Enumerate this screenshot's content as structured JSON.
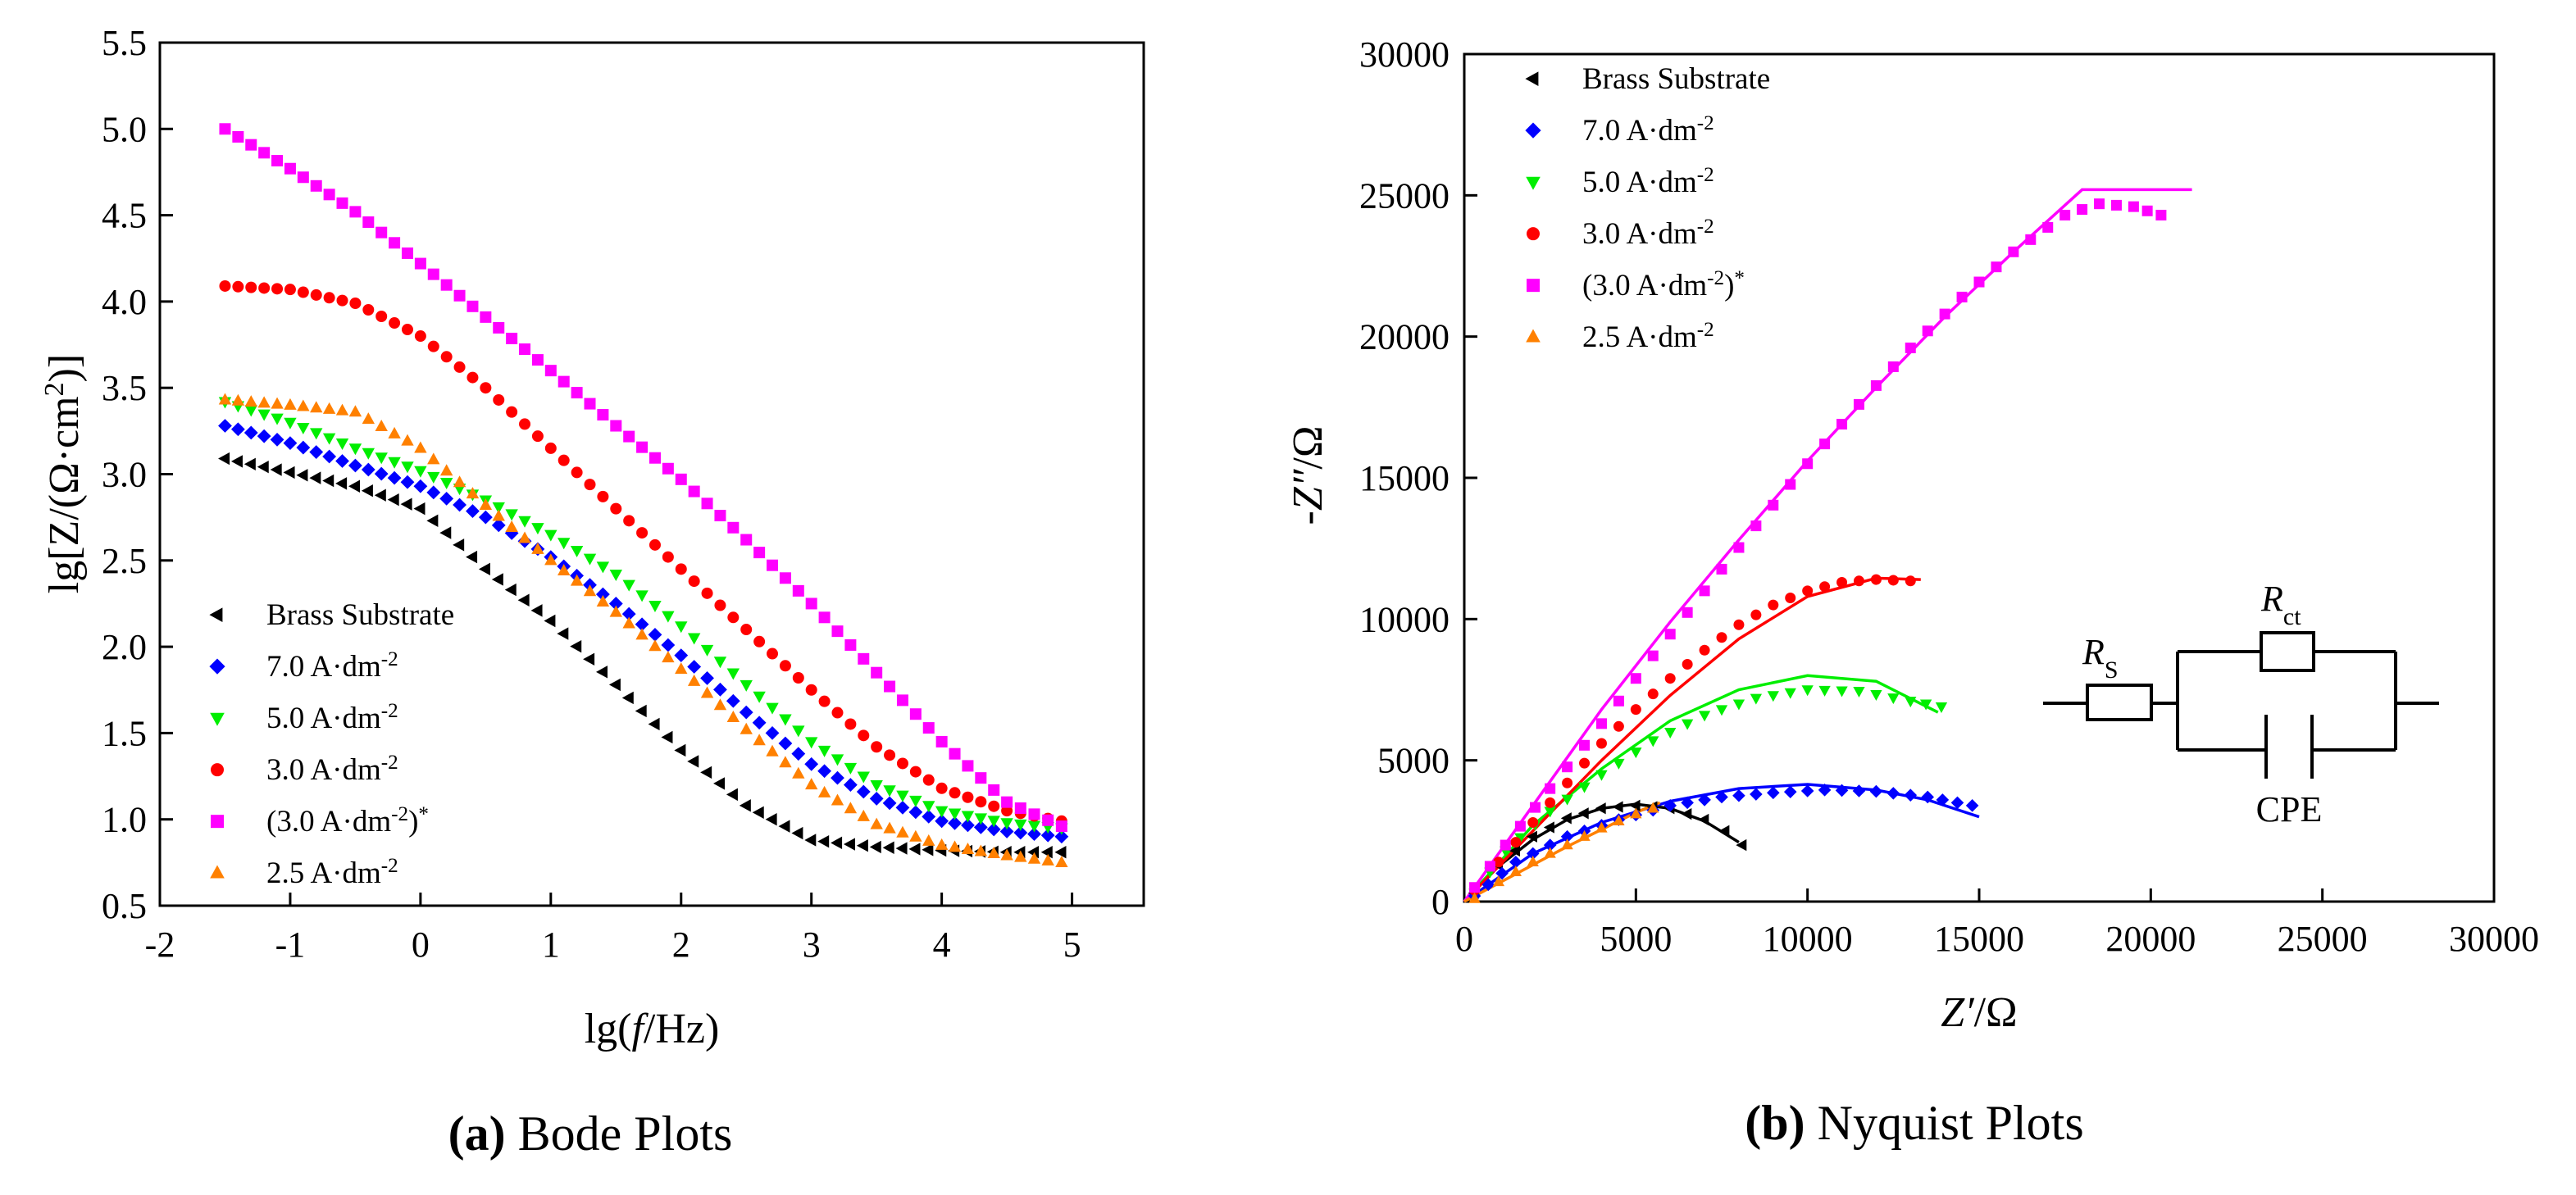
{
  "chart_data": [
    {
      "type": "scatter",
      "title": "Bode Plots",
      "caption_letter": "(a)",
      "caption_text": "Bode Plots",
      "xlabel": {
        "pre": "lg(",
        "italic": "f",
        "post": "/Hz)"
      },
      "ylabel": {
        "pre": "lg[Z/(Ω·cm",
        "sup": "2",
        "post": ")]"
      },
      "xlim": [
        -2,
        5.55
      ],
      "ylim": [
        0.5,
        5.5
      ],
      "xticks": [
        -2,
        -1,
        0,
        1,
        2,
        3,
        4,
        5
      ],
      "yticks": [
        0.5,
        1.0,
        1.5,
        2.0,
        2.5,
        3.0,
        3.5,
        4.0,
        4.5,
        5.0,
        5.5
      ],
      "ytick_labels": [
        "0.5",
        "1.0",
        "1.5",
        "2.0",
        "2.5",
        "3.0",
        "3.5",
        "4.0",
        "4.5",
        "5.0",
        "5.5"
      ],
      "legend_position": "lower-left",
      "series": [
        {
          "name": "Brass Substrate",
          "name_sup": "",
          "color": "#000000",
          "marker": "triangle-left",
          "x": [
            -1.5,
            -0.5,
            0.0,
            0.5,
            1.0,
            1.5,
            2.0,
            2.5,
            3.0,
            3.5,
            4.0,
            4.5,
            4.92
          ],
          "y": [
            3.09,
            2.93,
            2.8,
            2.45,
            2.15,
            1.78,
            1.4,
            1.08,
            0.88,
            0.84,
            0.82,
            0.81,
            0.81
          ]
        },
        {
          "name": "7.0 A·dm",
          "name_sup": "-2",
          "color": "#0000ff",
          "marker": "diamond",
          "x": [
            -1.5,
            -1.0,
            -0.5,
            0.0,
            0.5,
            1.0,
            1.5,
            2.0,
            2.5,
            3.0,
            3.5,
            4.0,
            4.5,
            4.92
          ],
          "y": [
            3.28,
            3.18,
            3.05,
            2.93,
            2.75,
            2.52,
            2.25,
            1.95,
            1.62,
            1.32,
            1.12,
            0.99,
            0.93,
            0.9
          ]
        },
        {
          "name": "5.0 A·dm",
          "name_sup": "-2",
          "color": "#00ee00",
          "marker": "triangle-down",
          "x": [
            -1.5,
            -1.0,
            -0.5,
            0.0,
            0.5,
            1.0,
            1.5,
            2.0,
            2.5,
            3.0,
            3.5,
            4.0,
            4.5,
            4.92
          ],
          "y": [
            3.42,
            3.3,
            3.15,
            3.02,
            2.85,
            2.65,
            2.42,
            2.12,
            1.78,
            1.45,
            1.2,
            1.05,
            0.98,
            0.95
          ]
        },
        {
          "name": "3.0 A·dm",
          "name_sup": "-2",
          "color": "#ff0000",
          "marker": "circle",
          "x": [
            -1.5,
            -1.0,
            -0.5,
            0.0,
            0.5,
            1.0,
            1.5,
            2.0,
            2.5,
            3.0,
            3.5,
            4.0,
            4.5,
            4.92
          ],
          "y": [
            4.09,
            4.07,
            3.99,
            3.8,
            3.5,
            3.15,
            2.8,
            2.45,
            2.1,
            1.75,
            1.42,
            1.18,
            1.05,
            0.99
          ]
        },
        {
          "name": "(3.0 A·dm",
          "name_sup": "-2",
          "name_post": ")",
          "name_post_sup": "*",
          "color": "#ff00ff",
          "marker": "square",
          "x": [
            -1.5,
            -1.0,
            -0.5,
            0.0,
            0.5,
            1.0,
            1.5,
            2.0,
            2.5,
            3.0,
            3.5,
            4.0,
            4.5,
            4.92
          ],
          "y": [
            5.0,
            4.77,
            4.52,
            4.22,
            3.91,
            3.6,
            3.28,
            2.97,
            2.62,
            2.25,
            1.85,
            1.45,
            1.1,
            0.96
          ]
        },
        {
          "name": "2.5 A·dm",
          "name_sup": "-2",
          "color": "#ff8000",
          "marker": "triangle-up",
          "x": [
            -1.5,
            -1.0,
            -0.5,
            0.0,
            0.5,
            1.0,
            1.5,
            2.0,
            2.5,
            3.0,
            3.5,
            4.0,
            4.5,
            4.92
          ],
          "y": [
            3.43,
            3.4,
            3.36,
            3.15,
            2.82,
            2.5,
            2.2,
            1.87,
            1.52,
            1.2,
            0.97,
            0.85,
            0.79,
            0.75
          ]
        }
      ]
    },
    {
      "type": "scatter",
      "title": "Nyquist Plots",
      "caption_letter": "(b)",
      "caption_text": "Nyquist Plots",
      "xlabel": {
        "pre": "",
        "italic": "Z′",
        "post": "/Ω"
      },
      "ylabel": {
        "pre": "-",
        "italic": "Z″",
        "post": "/Ω"
      },
      "xlim": [
        0,
        30000
      ],
      "ylim": [
        0,
        30000
      ],
      "xticks": [
        0,
        5000,
        10000,
        15000,
        20000,
        25000,
        30000
      ],
      "yticks": [
        0,
        5000,
        10000,
        15000,
        20000,
        25000,
        30000
      ],
      "legend_position": "top-left",
      "series": [
        {
          "name": "Brass Substrate",
          "name_sup": "",
          "color": "#000000",
          "marker": "triangle-left",
          "x": [
            300,
            1000,
            2000,
            3000,
            4000,
            5000,
            6000,
            7000,
            7600,
            8100
          ],
          "y": [
            300,
            1300,
            2300,
            2950,
            3300,
            3400,
            3300,
            2900,
            2500,
            2000
          ],
          "fit_x": [
            0,
            1000,
            2000,
            3000,
            4000,
            5000,
            6000,
            7000,
            8000
          ],
          "fit_y": [
            0,
            1250,
            2200,
            2900,
            3300,
            3450,
            3300,
            2850,
            2100
          ]
        },
        {
          "name": "7.0 A·dm",
          "name_sup": "-2",
          "color": "#0000ff",
          "marker": "diamond",
          "x": [
            300,
            1500,
            3000,
            4500,
            6000,
            7500,
            9000,
            10500,
            12000,
            13500,
            14800
          ],
          "y": [
            200,
            1400,
            2300,
            2900,
            3400,
            3700,
            3850,
            3950,
            3900,
            3700,
            3400
          ],
          "fit_x": [
            0,
            2000,
            4000,
            6000,
            8000,
            10000,
            12000,
            13500,
            15000
          ],
          "fit_y": [
            0,
            1700,
            2800,
            3550,
            4000,
            4150,
            3950,
            3600,
            3000
          ]
        },
        {
          "name": "5.0 A·dm",
          "name_sup": "-2",
          "color": "#00ee00",
          "marker": "triangle-down",
          "x": [
            300,
            1200,
            2500,
            4000,
            5500,
            7000,
            8500,
            10000,
            11500,
            13000,
            13900
          ],
          "y": [
            300,
            1800,
            3200,
            4500,
            5700,
            6600,
            7200,
            7500,
            7450,
            7100,
            6900
          ],
          "fit_x": [
            0,
            2000,
            4000,
            6000,
            8000,
            10000,
            12000,
            13800
          ],
          "fit_y": [
            0,
            2700,
            4700,
            6400,
            7500,
            8000,
            7800,
            6700
          ]
        },
        {
          "name": "3.0 A·dm",
          "name_sup": "-2",
          "color": "#ff0000",
          "marker": "circle",
          "x": [
            300,
            1000,
            2000,
            3000,
            4000,
            5000,
            6000,
            7000,
            8000,
            9000,
            10000,
            11000,
            12000,
            13000
          ],
          "y": [
            400,
            1400,
            2800,
            4200,
            5600,
            6800,
            7900,
            8900,
            9800,
            10500,
            11000,
            11300,
            11400,
            11350
          ],
          "fit_x": [
            0,
            2000,
            4000,
            6000,
            8000,
            10000,
            12000,
            13300
          ],
          "fit_y": [
            0,
            2500,
            5000,
            7300,
            9300,
            10800,
            11450,
            11400
          ]
        },
        {
          "name": "(3.0 A·dm",
          "name_sup": "-2",
          "name_post": ")",
          "name_post_sup": "*",
          "color": "#ff00ff",
          "marker": "square",
          "x": [
            300,
            1200,
            2500,
            4000,
            5500,
            7000,
            8500,
            10000,
            11500,
            13000,
            14500,
            16000,
            17500,
            18500,
            19500,
            20300
          ],
          "y": [
            500,
            2000,
            4000,
            6300,
            8700,
            11000,
            13300,
            15500,
            17600,
            19600,
            21400,
            23000,
            24300,
            24700,
            24600,
            24300
          ],
          "fit_x": [
            0,
            2000,
            4000,
            6000,
            8000,
            10000,
            12000,
            14000,
            16000,
            18000,
            21200
          ],
          "fit_y": [
            0,
            3400,
            6800,
            9900,
            12800,
            15600,
            18200,
            20700,
            23000,
            25200,
            25200
          ]
        },
        {
          "name": "2.5 A·dm",
          "name_sup": "-2",
          "color": "#ff8000",
          "marker": "triangle-up",
          "x": [
            300,
            1000,
            2000,
            3000,
            4000,
            5000,
            5500
          ],
          "y": [
            100,
            700,
            1400,
            2000,
            2600,
            3100,
            3300
          ],
          "fit_x": [
            0,
            1000,
            2000,
            3000,
            4000,
            5000,
            5700
          ],
          "fit_y": [
            0,
            650,
            1300,
            1950,
            2550,
            3150,
            3500
          ]
        }
      ],
      "circuit": {
        "rs_label": "R",
        "rs_sub": "S",
        "rct_label": "R",
        "rct_sub": "ct",
        "cpe_label": "CPE"
      }
    }
  ]
}
